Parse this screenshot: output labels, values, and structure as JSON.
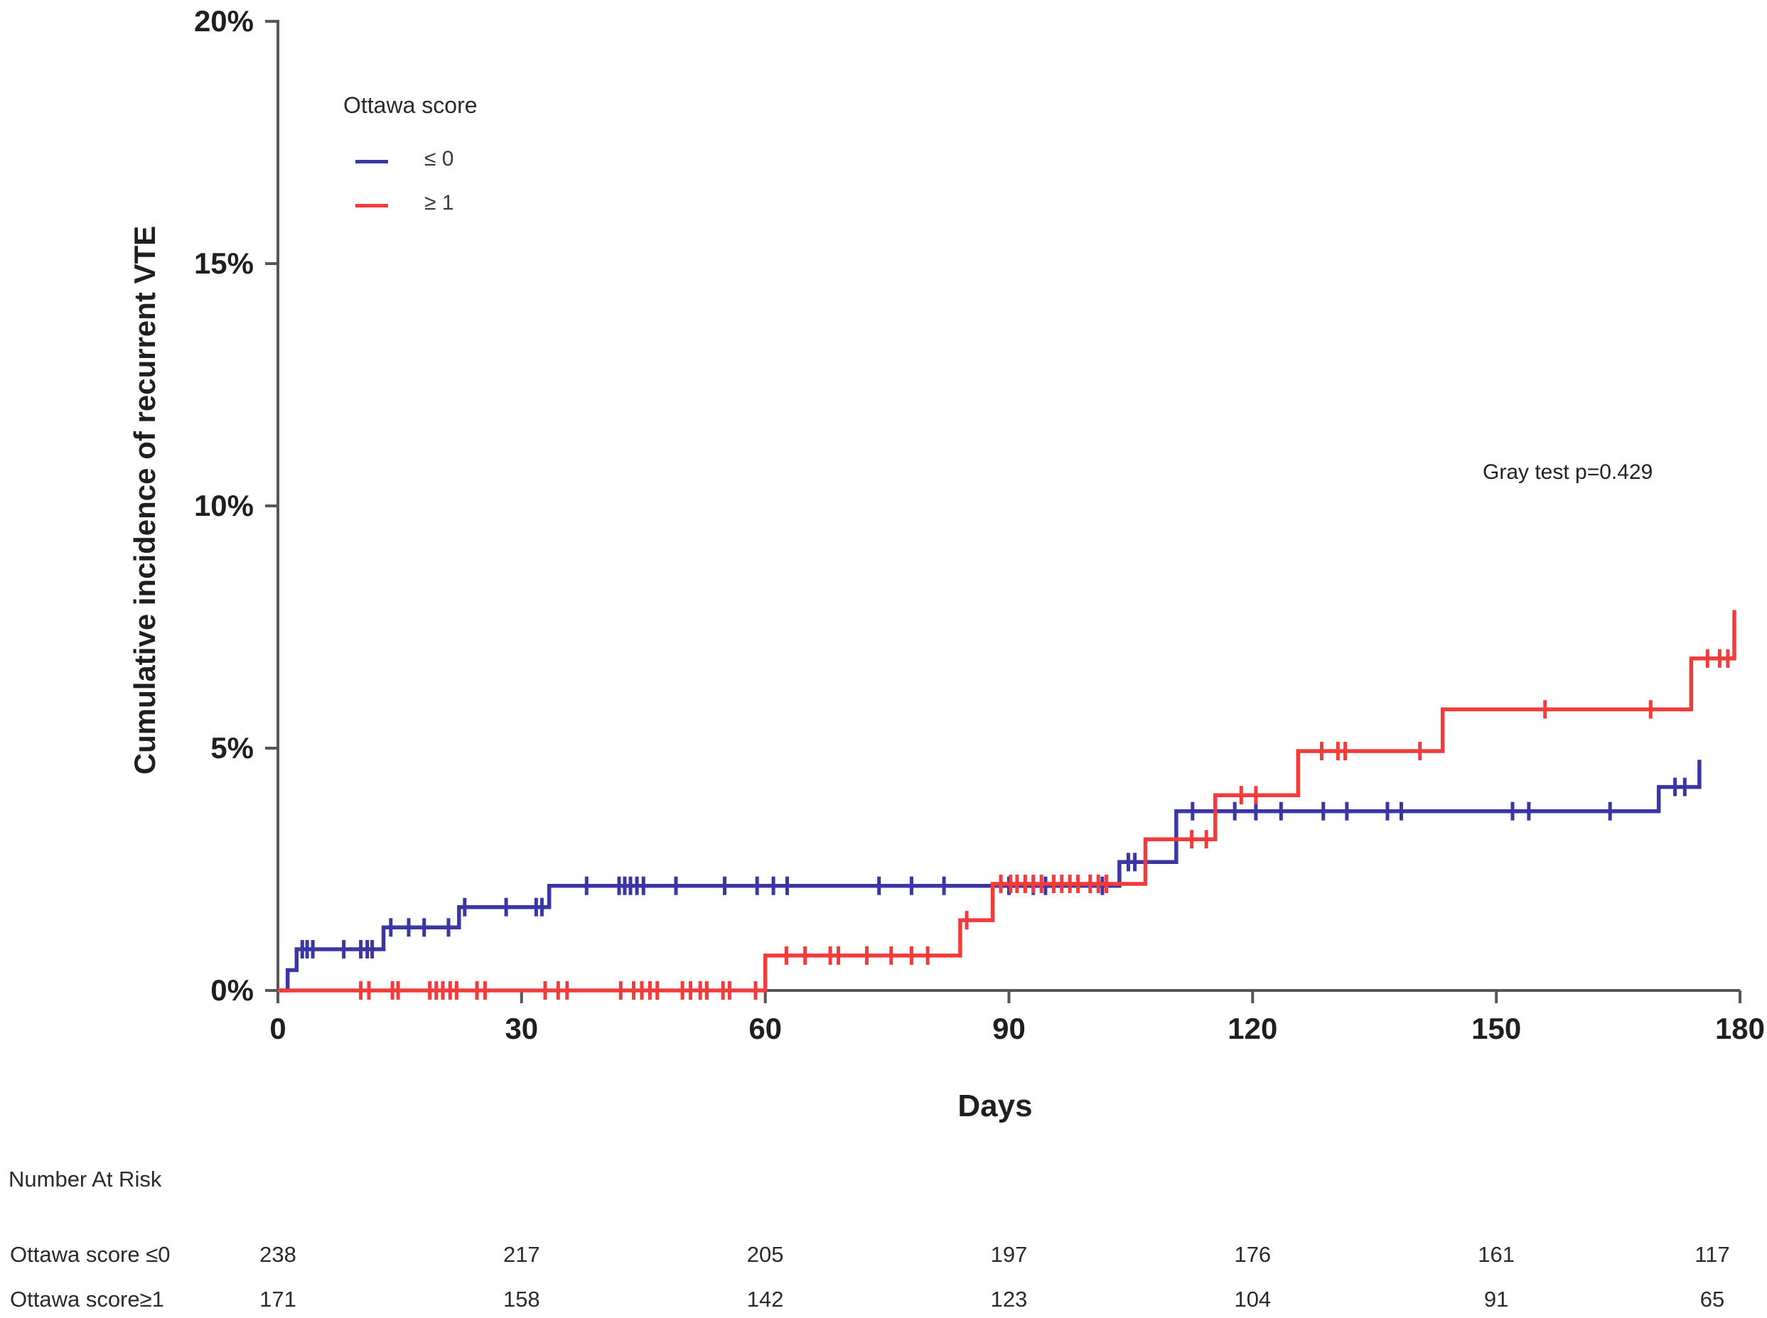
{
  "chart_data": {
    "type": "line",
    "variant": "cumulative-incidence-step-curve",
    "title": "",
    "annotation": "Gray test p=0.429",
    "grid": false,
    "legend": {
      "title": "Ottawa score",
      "position": "top-left-inside"
    },
    "x_axis": {
      "label": "Days",
      "min": 0,
      "max": 180,
      "ticks": [
        0,
        30,
        60,
        90,
        120,
        150,
        180
      ]
    },
    "y_axis": {
      "label": "Cumulative incidence of recurrent VTE",
      "min": 0,
      "max": 20,
      "tick_values": [
        0,
        5,
        10,
        15,
        20
      ],
      "tick_labels": [
        "0%",
        "5%",
        "10%",
        "15%",
        "20%"
      ]
    },
    "series": [
      {
        "name": "Ottawa score ≤ 0",
        "legend_label": "≤ 0",
        "color": "#3b36a3",
        "steps": [
          [
            0,
            0
          ],
          [
            1.2,
            0.42
          ],
          [
            2.3,
            0.85
          ],
          [
            13,
            1.3
          ],
          [
            22.3,
            1.72
          ],
          [
            33.4,
            2.16
          ],
          [
            103.6,
            2.65
          ],
          [
            110.6,
            3.7
          ],
          [
            170,
            4.2
          ],
          [
            175,
            4.76
          ]
        ],
        "end_day": 175,
        "censor_days": [
          3,
          3.6,
          4.3,
          8.1,
          10.2,
          11,
          11.6,
          13.9,
          16.1,
          18,
          21,
          23,
          28.1,
          31.8,
          32.5,
          38,
          42,
          42.7,
          43.4,
          44.2,
          45,
          49,
          55,
          59,
          61,
          62.7,
          74,
          78,
          82,
          90,
          93,
          94.5,
          101.5,
          104.7,
          105.5,
          112.6,
          117.8,
          120.4,
          123.5,
          128.7,
          131.6,
          136.6,
          138.3,
          152,
          154,
          164,
          172,
          173.2
        ]
      },
      {
        "name": "Ottawa score ≥ 1",
        "legend_label": "≥ 1",
        "color": "#f23b3b",
        "steps": [
          [
            0,
            0
          ],
          [
            60,
            0.72
          ],
          [
            84,
            1.45
          ],
          [
            88,
            2.2
          ],
          [
            106.8,
            3.12
          ],
          [
            115.4,
            4.03
          ],
          [
            125.6,
            4.94
          ],
          [
            143.4,
            5.8
          ],
          [
            174,
            6.85
          ],
          [
            179.3,
            7.85
          ]
        ],
        "end_day": 179.3,
        "censor_days": [
          10.2,
          11.2,
          14.1,
          14.8,
          18.7,
          19.5,
          20.3,
          21.2,
          22,
          24.5,
          25.5,
          32.9,
          34.5,
          35.6,
          42.2,
          43.8,
          44.8,
          45.8,
          46.7,
          49.8,
          50.8,
          52,
          52.8,
          54.8,
          55.6,
          58.8,
          62.6,
          64.9,
          68,
          69,
          72.5,
          75.5,
          78,
          80,
          84.8,
          89,
          90.2,
          91,
          92,
          93,
          94,
          95.5,
          96.5,
          97.5,
          98.5,
          100,
          101,
          102,
          112.5,
          114.3,
          118.6,
          120.4,
          128.5,
          130.5,
          131.4,
          140.6,
          156,
          169,
          176,
          177.5,
          178.5
        ]
      }
    ]
  },
  "risk_table": {
    "title": "Number At Risk",
    "days": [
      0,
      30,
      60,
      90,
      120,
      150,
      180
    ],
    "rows": [
      {
        "label": "Ottawa score ≤0",
        "values": [
          "238",
          "217",
          "205",
          "197",
          "176",
          "161",
          "117"
        ]
      },
      {
        "label": "Ottawa score≥1",
        "values": [
          "171",
          "158",
          "142",
          "123",
          "104",
          "91",
          "65"
        ]
      }
    ]
  }
}
